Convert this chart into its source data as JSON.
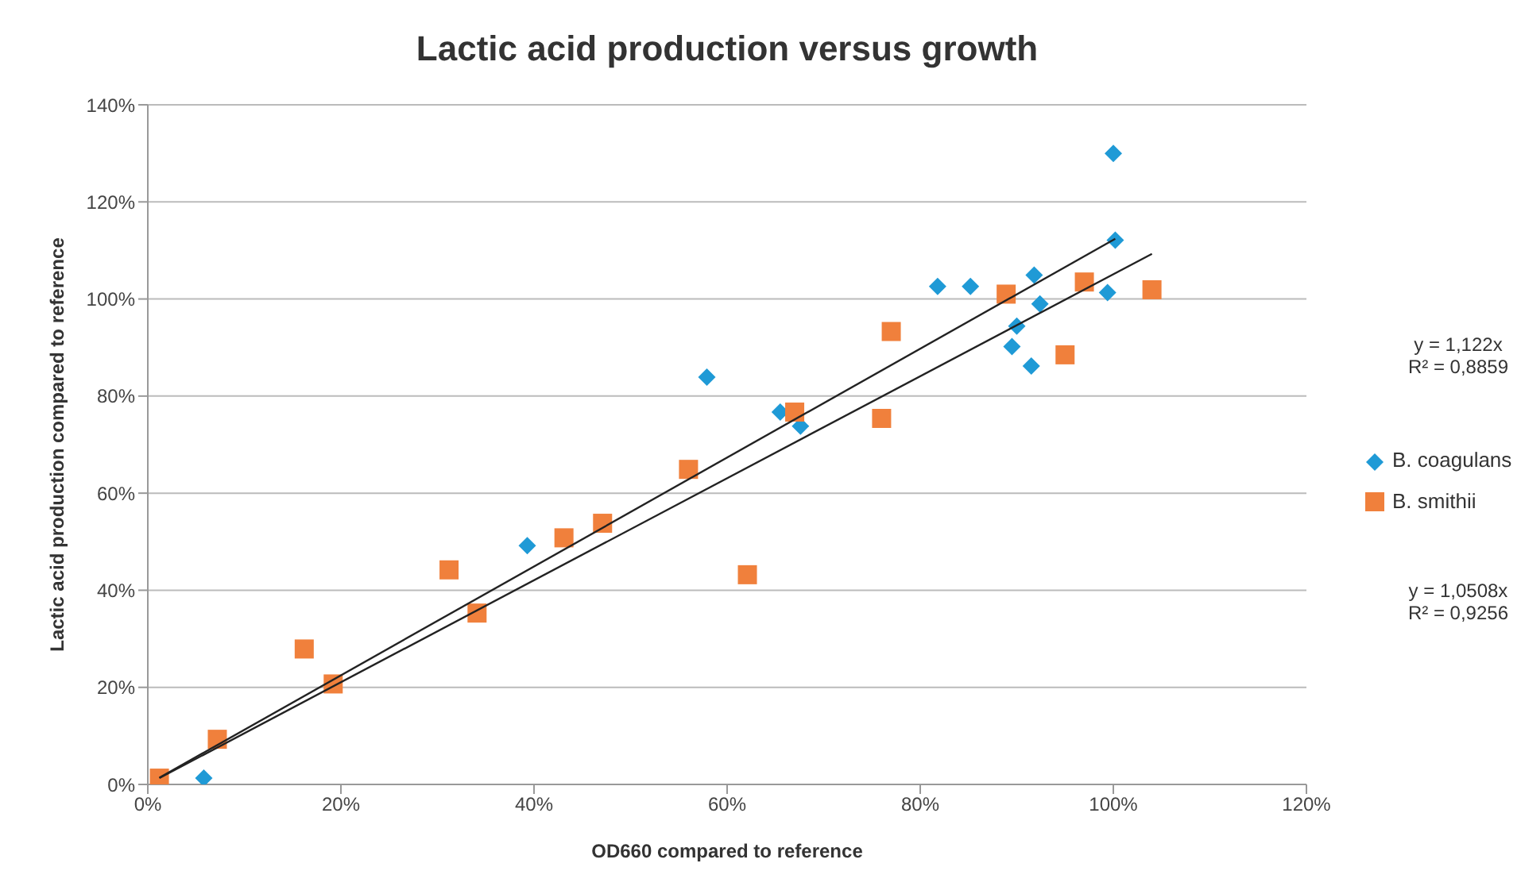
{
  "chart_data": {
    "type": "scatter",
    "title": "Lactic acid production versus growth",
    "xlabel": "OD660 compared to reference",
    "ylabel": "Lactic acid production compared to reference",
    "xlim": [
      0,
      120
    ],
    "ylim": [
      0,
      140
    ],
    "xticks": [
      {
        "value": 0,
        "label": "0%"
      },
      {
        "value": 20,
        "label": "20%"
      },
      {
        "value": 40,
        "label": "40%"
      },
      {
        "value": 60,
        "label": "60%"
      },
      {
        "value": 80,
        "label": "80%"
      },
      {
        "value": 100,
        "label": "100%"
      },
      {
        "value": 120,
        "label": "120%"
      }
    ],
    "yticks": [
      {
        "value": 0,
        "label": "0%"
      },
      {
        "value": 20,
        "label": "20%"
      },
      {
        "value": 40,
        "label": "40%"
      },
      {
        "value": 60,
        "label": "60%"
      },
      {
        "value": 80,
        "label": "80%"
      },
      {
        "value": 100,
        "label": "100%"
      },
      {
        "value": 120,
        "label": "120%"
      },
      {
        "value": 140,
        "label": "140%"
      }
    ],
    "grid": "y",
    "legend": "right",
    "annotations": [
      "y = 1,122x\nR² = 0,8859",
      "y = 1,0508x\nR² = 0,9256"
    ],
    "series": [
      {
        "name": "B. coagulans",
        "color": "#1f9ad6",
        "marker": "diamond",
        "x": [
          5.8,
          39.3,
          57.9,
          65.5,
          67.6,
          81.8,
          85.2,
          89.5,
          90.0,
          91.5,
          91.8,
          92.4,
          99.4,
          100.0,
          100.2
        ],
        "values": [
          1.3,
          49.2,
          83.9,
          76.7,
          73.8,
          102.6,
          102.6,
          90.2,
          94.4,
          86.2,
          104.9,
          99.0,
          101.3,
          130,
          112.1
        ]
      },
      {
        "name": "B. smithii",
        "color": "#f0803c",
        "marker": "square",
        "x": [
          1.2,
          7.2,
          16.2,
          19.2,
          31.2,
          34.1,
          43.1,
          47.1,
          56.0,
          62.1,
          67.0,
          76.0,
          77.0,
          88.9,
          95.0,
          97.0,
          104.0
        ],
        "values": [
          1.3,
          9.3,
          27.9,
          20.7,
          44.2,
          35.3,
          50.8,
          53.8,
          64.9,
          43.2,
          76.7,
          75.4,
          93.3,
          101.0,
          88.5,
          103.5,
          101.9
        ]
      },
      {
        "type": "line",
        "color": "#222222",
        "marker": "none",
        "x": [
          1.2,
          100.2
        ],
        "values": [
          1.4,
          112.4
        ]
      },
      {
        "type": "line",
        "color": "#222222",
        "marker": "none",
        "x": [
          1.2,
          104.0
        ],
        "values": [
          1.3,
          109.3
        ]
      }
    ]
  }
}
